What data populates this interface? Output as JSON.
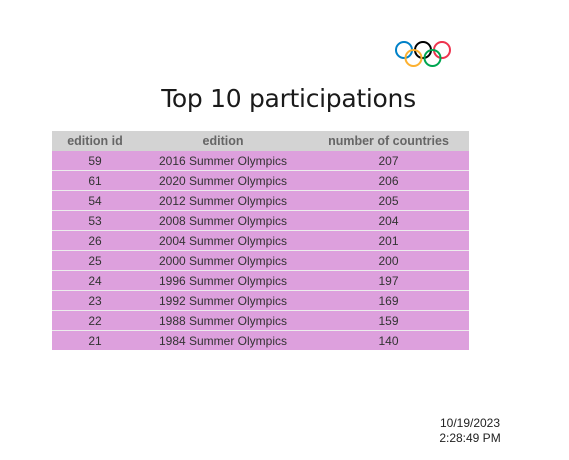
{
  "logo": {
    "icon": "olympic-rings-icon",
    "ring_colors": [
      "#0081c8",
      "#fcb131",
      "#000000",
      "#00a651",
      "#ee334e"
    ]
  },
  "title": "Top 10 participations",
  "table": {
    "columns": [
      "edition id",
      "edition",
      "number of countries"
    ],
    "header_bg": "#d3d3d3",
    "row_bg": "#dda0dd",
    "rows": [
      {
        "edition_id": "59",
        "edition": "2016 Summer Olympics",
        "countries": "207"
      },
      {
        "edition_id": "61",
        "edition": "2020 Summer Olympics",
        "countries": "206"
      },
      {
        "edition_id": "54",
        "edition": "2012 Summer Olympics",
        "countries": "205"
      },
      {
        "edition_id": "53",
        "edition": "2008 Summer Olympics",
        "countries": "204"
      },
      {
        "edition_id": "26",
        "edition": "2004 Summer Olympics",
        "countries": "201"
      },
      {
        "edition_id": "25",
        "edition": "2000 Summer Olympics",
        "countries": "200"
      },
      {
        "edition_id": "24",
        "edition": "1996 Summer Olympics",
        "countries": "197"
      },
      {
        "edition_id": "23",
        "edition": "1992 Summer Olympics",
        "countries": "169"
      },
      {
        "edition_id": "22",
        "edition": "1988 Summer Olympics",
        "countries": "159"
      },
      {
        "edition_id": "21",
        "edition": "1984 Summer Olympics",
        "countries": "140"
      }
    ]
  },
  "timestamp": {
    "date": "10/19/2023",
    "time": "2:28:49 PM"
  }
}
